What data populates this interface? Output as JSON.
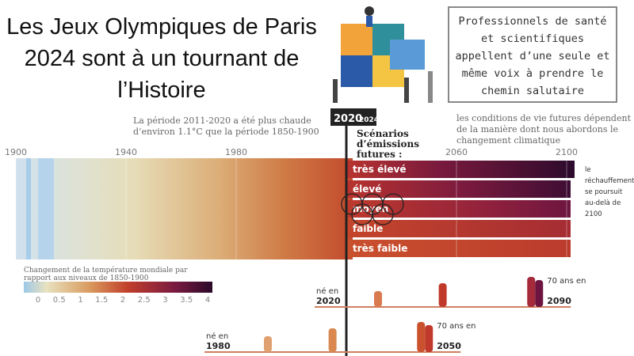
{
  "title": "Les Jeux Olympiques de Paris 2024 sont à un tournant de l’Histoire",
  "callout": "Professionnels de santé et scientifiques appellent d’une seule et même voix à prendre le chemin salutaire",
  "note_past": "La période 2011-2020 a été plus chaude d’environ 1.1°C que la période 1850-1900",
  "note_future": "les conditions de vie futures dépendent de la manière dont nous abordons le changement climatique",
  "marker": {
    "year": 2020,
    "event": "2024"
  },
  "axis_years": [
    1900,
    1940,
    1980,
    2060,
    2100
  ],
  "scenarios_title": "Scénarios d’émissions futures :",
  "scenarios": [
    "très élevé",
    "élevé",
    "moyen",
    "faible",
    "très faible"
  ],
  "beyond_2100": "le réchauffement se poursuit au-delà de 2100",
  "legend": {
    "title": "Changement de la température mondiale par rapport aux niveaux de 1850-1900",
    "ticks": [
      0,
      0.5,
      1,
      1.5,
      2,
      2.5,
      3,
      3.5,
      4
    ]
  },
  "people": [
    {
      "born_label": "né en",
      "born_year": 2020,
      "age_label": "70 ans en",
      "age_year": 2090
    },
    {
      "born_label": "né en",
      "born_year": 1980,
      "age_label": "70 ans en",
      "age_year": 2050
    }
  ]
}
